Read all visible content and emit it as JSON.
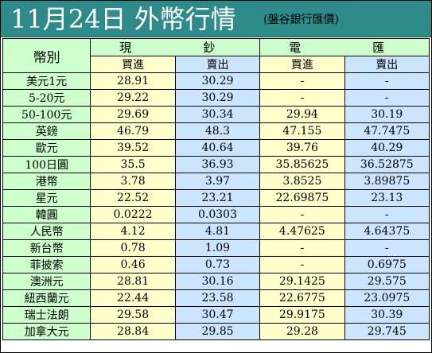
{
  "title": {
    "main": "11月24日 外幣行情",
    "source": "(盤谷銀行匯價)"
  },
  "table": {
    "currency_header": "幣別",
    "cash_header": "現　　鈔",
    "wire_header": "電　　匯",
    "buy_label": "買進",
    "sell_label": "賣出",
    "rows": [
      {
        "name": "美元1元",
        "cash_buy": "28.91",
        "cash_sell": "30.29",
        "wire_buy": "-",
        "wire_sell": "-"
      },
      {
        "name": "5-20元",
        "cash_buy": "29.22",
        "cash_sell": "30.29",
        "wire_buy": "-",
        "wire_sell": "-"
      },
      {
        "name": "50-100元",
        "cash_buy": "29.69",
        "cash_sell": "30.34",
        "wire_buy": "29.94",
        "wire_sell": "30.19"
      },
      {
        "name": "英鎊",
        "cash_buy": "46.79",
        "cash_sell": "48.3",
        "wire_buy": "47.155",
        "wire_sell": "47.7475"
      },
      {
        "name": "歐元",
        "cash_buy": "39.52",
        "cash_sell": "40.64",
        "wire_buy": "39.76",
        "wire_sell": "40.29"
      },
      {
        "name": "100日圓",
        "cash_buy": "35.5",
        "cash_sell": "36.93",
        "wire_buy": "35.85625",
        "wire_sell": "36.52875"
      },
      {
        "name": "港幣",
        "cash_buy": "3.78",
        "cash_sell": "3.97",
        "wire_buy": "3.8525",
        "wire_sell": "3.89875"
      },
      {
        "name": "星元",
        "cash_buy": "22.52",
        "cash_sell": "23.21",
        "wire_buy": "22.69875",
        "wire_sell": "23.13"
      },
      {
        "name": "韓圓",
        "cash_buy": "0.0222",
        "cash_sell": "0.0303",
        "wire_buy": "-",
        "wire_sell": "-"
      },
      {
        "name": "人民幣",
        "cash_buy": "4.12",
        "cash_sell": "4.81",
        "wire_buy": "4.47625",
        "wire_sell": "4.64375"
      },
      {
        "name": "新台幣",
        "cash_buy": "0.78",
        "cash_sell": "1.09",
        "wire_buy": "-",
        "wire_sell": "-"
      },
      {
        "name": "菲披索",
        "cash_buy": "0.46",
        "cash_sell": "0.73",
        "wire_buy": "-",
        "wire_sell": "0.6975"
      },
      {
        "name": "澳洲元",
        "cash_buy": "28.81",
        "cash_sell": "30.16",
        "wire_buy": "29.1425",
        "wire_sell": "29.575"
      },
      {
        "name": "紐西蘭元",
        "cash_buy": "22.44",
        "cash_sell": "23.58",
        "wire_buy": "22.6775",
        "wire_sell": "23.0975"
      },
      {
        "name": "瑞士法朗",
        "cash_buy": "29.58",
        "cash_sell": "30.47",
        "wire_buy": "29.9175",
        "wire_sell": "30.39"
      },
      {
        "name": "加拿大元",
        "cash_buy": "28.84",
        "cash_sell": "29.85",
        "wire_buy": "29.28",
        "wire_sell": "29.745"
      }
    ]
  },
  "colors": {
    "title_bar": "#2f8a8a",
    "title_text": "#ffffff",
    "name_column": "#ccffcc",
    "buy_column": "#ffffcc",
    "sell_column": "#cce5ff"
  }
}
